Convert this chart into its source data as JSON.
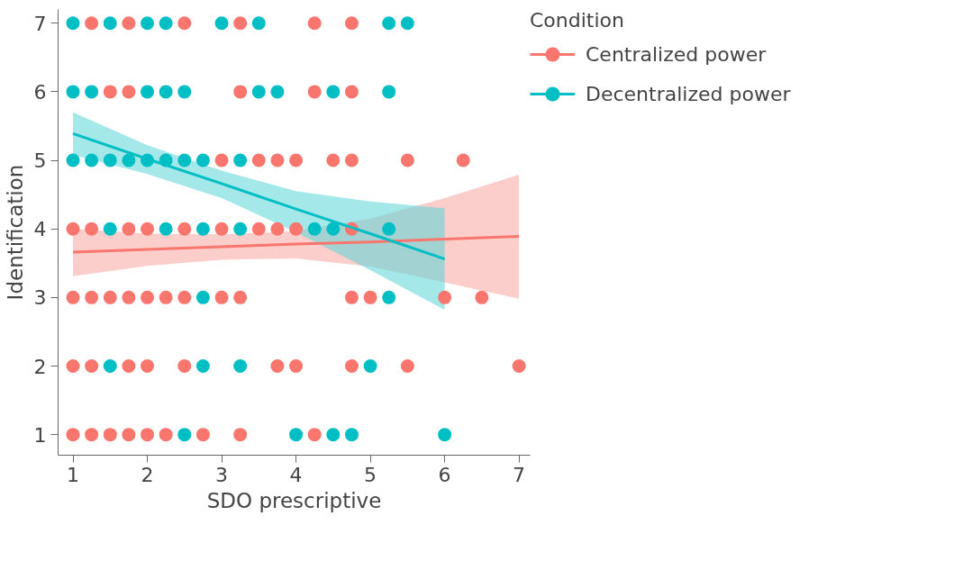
{
  "chart_data": {
    "type": "scatter",
    "xlabel": "SDO prescriptive",
    "ylabel": "Identification",
    "legend_title": "Condition",
    "xlim": [
      0.8,
      7.15
    ],
    "ylim": [
      0.7,
      7.2
    ],
    "xticks": [
      1,
      2,
      3,
      4,
      5,
      6,
      7
    ],
    "yticks": [
      1,
      2,
      3,
      4,
      5,
      6,
      7
    ],
    "grid": false,
    "legend": "right",
    "series": [
      {
        "name": "Centralized power",
        "color": "#f8766d",
        "x": [
          1.25,
          1.75,
          2.5,
          3.25,
          4.25,
          4.75,
          1.5,
          1.75,
          3.25,
          4.25,
          4.75,
          3,
          3.5,
          3.75,
          4,
          4.5,
          4.75,
          5.5,
          6.25,
          1,
          1.25,
          1.75,
          2,
          2.5,
          3,
          3.5,
          3.75,
          4,
          4.75,
          1,
          1.25,
          1.5,
          1.75,
          2,
          2.25,
          2.5,
          3,
          3.25,
          4.75,
          5,
          6,
          6.5,
          1,
          1.25,
          1.75,
          2,
          2.5,
          3.75,
          4,
          4.75,
          5.5,
          7,
          1,
          1.25,
          1.5,
          1.75,
          2,
          2.25,
          2.75,
          3.25,
          4.25
        ],
        "values": [
          7,
          7,
          7,
          7,
          7,
          7,
          6,
          6,
          6,
          6,
          6,
          5,
          5,
          5,
          5,
          5,
          5,
          5,
          5,
          4,
          4,
          4,
          4,
          4,
          4,
          4,
          4,
          4,
          4,
          3,
          3,
          3,
          3,
          3,
          3,
          3,
          3,
          3,
          3,
          3,
          3,
          3,
          2,
          2,
          2,
          2,
          2,
          2,
          2,
          2,
          2,
          2,
          1,
          1,
          1,
          1,
          1,
          1,
          1,
          1,
          1
        ]
      },
      {
        "name": "Decentralized power",
        "color": "#00bfc4",
        "x": [
          1,
          1.5,
          2,
          2.25,
          3,
          3.5,
          5.25,
          5.5,
          1,
          1.25,
          2,
          2.25,
          2.5,
          3.5,
          3.75,
          4.5,
          5.25,
          1,
          1.25,
          1.5,
          1.75,
          2,
          2.25,
          2.5,
          2.75,
          3.25,
          1.5,
          2.25,
          2.75,
          3.25,
          4.25,
          4.5,
          5.25,
          2.75,
          5.25,
          1.5,
          2.75,
          3.25,
          5,
          2.5,
          4,
          4.5,
          4.75,
          6
        ],
        "values": [
          7,
          7,
          7,
          7,
          7,
          7,
          7,
          7,
          6,
          6,
          6,
          6,
          6,
          6,
          6,
          6,
          6,
          5,
          5,
          5,
          5,
          5,
          5,
          5,
          5,
          5,
          4,
          4,
          4,
          4,
          4,
          4,
          4,
          3,
          3,
          2,
          2,
          2,
          2,
          1,
          1,
          1,
          1,
          1
        ]
      },
      {
        "color": "#f8766d",
        "type": "line",
        "x": [
          1,
          2,
          3,
          4,
          5,
          6,
          7
        ],
        "values": [
          3.66,
          3.7,
          3.74,
          3.78,
          3.81,
          3.85,
          3.89
        ],
        "lower": [
          3.31,
          3.46,
          3.55,
          3.57,
          3.45,
          3.22,
          2.98
        ],
        "upper": [
          4.0,
          3.93,
          3.92,
          3.97,
          4.15,
          4.45,
          4.79
        ]
      },
      {
        "color": "#00bfc4",
        "type": "line",
        "x": [
          1,
          2,
          3,
          4,
          5,
          6
        ],
        "values": [
          5.39,
          5.02,
          4.66,
          4.29,
          3.93,
          3.56
        ],
        "lower": [
          5.08,
          4.8,
          4.45,
          3.95,
          3.4,
          2.82
        ],
        "upper": [
          5.7,
          5.22,
          4.85,
          4.55,
          4.4,
          4.3
        ]
      }
    ]
  }
}
